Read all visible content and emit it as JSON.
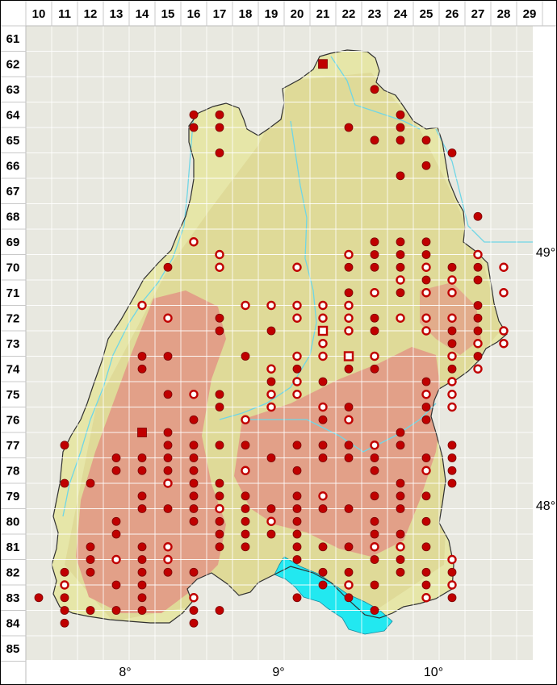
{
  "grid": {
    "columns": [
      "10",
      "11",
      "12",
      "13",
      "14",
      "15",
      "16",
      "17",
      "18",
      "19",
      "20",
      "21",
      "22",
      "23",
      "24",
      "25",
      "26",
      "27",
      "28",
      "29"
    ],
    "rows": [
      "61",
      "62",
      "63",
      "64",
      "65",
      "66",
      "67",
      "68",
      "69",
      "70",
      "71",
      "72",
      "73",
      "74",
      "75",
      "76",
      "77",
      "78",
      "79",
      "80",
      "81",
      "82",
      "83",
      "84",
      "85"
    ]
  },
  "longitude_labels": [
    "8°",
    "9°",
    "10°"
  ],
  "latitude_labels": [
    "49°",
    "48°"
  ],
  "colors": {
    "lowland": "#e6e6a8",
    "midland": "#d9d08a",
    "highland": "#e2a088",
    "outside": "#e8e8e0",
    "lake": "#22e8f0",
    "river": "#6fd6e6",
    "marker": "#c00000",
    "border": "#303030"
  },
  "legend_symbols": [
    "filled-dot",
    "open-dot",
    "filled-square",
    "open-square"
  ],
  "records": [
    {
      "c": 21,
      "r": 62,
      "t": "fs"
    },
    {
      "c": 23,
      "r": 63,
      "t": "f"
    },
    {
      "c": 16,
      "r": 64,
      "t": "f"
    },
    {
      "c": 17,
      "r": 64,
      "t": "f"
    },
    {
      "c": 24,
      "r": 64,
      "t": "f"
    },
    {
      "c": 16,
      "r": 64.5,
      "t": "f"
    },
    {
      "c": 17,
      "r": 64.5,
      "t": "f"
    },
    {
      "c": 22,
      "r": 64.5,
      "t": "f"
    },
    {
      "c": 24,
      "r": 64.5,
      "t": "f"
    },
    {
      "c": 23,
      "r": 65,
      "t": "f"
    },
    {
      "c": 24,
      "r": 65,
      "t": "f"
    },
    {
      "c": 25,
      "r": 65,
      "t": "f"
    },
    {
      "c": 17,
      "r": 65.5,
      "t": "f"
    },
    {
      "c": 26,
      "r": 65.5,
      "t": "f"
    },
    {
      "c": 25,
      "r": 66,
      "t": "f"
    },
    {
      "c": 24,
      "r": 66.4,
      "t": "f"
    },
    {
      "c": 27,
      "r": 68,
      "t": "f"
    },
    {
      "c": 16,
      "r": 69,
      "t": "o"
    },
    {
      "c": 23,
      "r": 69,
      "t": "f"
    },
    {
      "c": 24,
      "r": 69,
      "t": "f"
    },
    {
      "c": 25,
      "r": 69,
      "t": "f"
    },
    {
      "c": 17,
      "r": 69.5,
      "t": "o"
    },
    {
      "c": 22,
      "r": 69.5,
      "t": "o"
    },
    {
      "c": 23,
      "r": 69.5,
      "t": "f"
    },
    {
      "c": 24,
      "r": 69.5,
      "t": "f"
    },
    {
      "c": 25,
      "r": 69.5,
      "t": "f"
    },
    {
      "c": 27,
      "r": 69.5,
      "t": "o"
    },
    {
      "c": 15,
      "r": 70,
      "t": "f"
    },
    {
      "c": 17,
      "r": 70,
      "t": "o"
    },
    {
      "c": 20,
      "r": 70,
      "t": "o"
    },
    {
      "c": 22,
      "r": 70,
      "t": "f"
    },
    {
      "c": 23,
      "r": 70,
      "t": "f"
    },
    {
      "c": 24,
      "r": 70,
      "t": "f"
    },
    {
      "c": 25,
      "r": 70,
      "t": "o"
    },
    {
      "c": 26,
      "r": 70,
      "t": "f"
    },
    {
      "c": 27,
      "r": 70,
      "t": "f"
    },
    {
      "c": 28,
      "r": 70,
      "t": "o"
    },
    {
      "c": 24,
      "r": 70.5,
      "t": "o"
    },
    {
      "c": 25,
      "r": 70.5,
      "t": "f"
    },
    {
      "c": 26,
      "r": 70.5,
      "t": "o"
    },
    {
      "c": 27,
      "r": 70.5,
      "t": "f"
    },
    {
      "c": 22,
      "r": 71,
      "t": "f"
    },
    {
      "c": 23,
      "r": 71,
      "t": "o"
    },
    {
      "c": 24,
      "r": 71,
      "t": "f"
    },
    {
      "c": 25,
      "r": 71,
      "t": "o"
    },
    {
      "c": 26,
      "r": 71,
      "t": "o"
    },
    {
      "c": 28,
      "r": 71,
      "t": "o"
    },
    {
      "c": 14,
      "r": 71.5,
      "t": "o"
    },
    {
      "c": 18,
      "r": 71.5,
      "t": "o"
    },
    {
      "c": 19,
      "r": 71.5,
      "t": "o"
    },
    {
      "c": 20,
      "r": 71.5,
      "t": "o"
    },
    {
      "c": 21,
      "r": 71.5,
      "t": "o"
    },
    {
      "c": 22,
      "r": 71.5,
      "t": "o"
    },
    {
      "c": 27,
      "r": 71.5,
      "t": "f"
    },
    {
      "c": 15,
      "r": 72,
      "t": "o"
    },
    {
      "c": 17,
      "r": 72,
      "t": "f"
    },
    {
      "c": 20,
      "r": 72,
      "t": "o"
    },
    {
      "c": 21,
      "r": 72,
      "t": "o"
    },
    {
      "c": 22,
      "r": 72,
      "t": "o"
    },
    {
      "c": 23,
      "r": 72,
      "t": "f"
    },
    {
      "c": 24,
      "r": 72,
      "t": "o"
    },
    {
      "c": 25,
      "r": 72,
      "t": "o"
    },
    {
      "c": 26,
      "r": 72,
      "t": "o"
    },
    {
      "c": 27,
      "r": 72,
      "t": "f"
    },
    {
      "c": 17,
      "r": 72.5,
      "t": "f"
    },
    {
      "c": 19,
      "r": 72.5,
      "t": "f"
    },
    {
      "c": 21,
      "r": 72.5,
      "t": "os"
    },
    {
      "c": 22,
      "r": 72.5,
      "t": "o"
    },
    {
      "c": 23,
      "r": 72.5,
      "t": "f"
    },
    {
      "c": 25,
      "r": 72.5,
      "t": "o"
    },
    {
      "c": 26,
      "r": 72.5,
      "t": "f"
    },
    {
      "c": 27,
      "r": 72.5,
      "t": "f"
    },
    {
      "c": 28,
      "r": 72.5,
      "t": "o"
    },
    {
      "c": 21,
      "r": 73,
      "t": "o"
    },
    {
      "c": 26,
      "r": 73,
      "t": "f"
    },
    {
      "c": 27,
      "r": 73,
      "t": "o"
    },
    {
      "c": 28,
      "r": 73,
      "t": "o"
    },
    {
      "c": 14,
      "r": 73.5,
      "t": "f"
    },
    {
      "c": 15,
      "r": 73.5,
      "t": "f"
    },
    {
      "c": 18,
      "r": 73.5,
      "t": "f"
    },
    {
      "c": 20,
      "r": 73.5,
      "t": "o"
    },
    {
      "c": 21,
      "r": 73.5,
      "t": "o"
    },
    {
      "c": 22,
      "r": 73.5,
      "t": "os"
    },
    {
      "c": 23,
      "r": 73.5,
      "t": "o"
    },
    {
      "c": 26,
      "r": 73.5,
      "t": "o"
    },
    {
      "c": 27,
      "r": 73.5,
      "t": "f"
    },
    {
      "c": 14,
      "r": 74,
      "t": "f"
    },
    {
      "c": 19,
      "r": 74,
      "t": "o"
    },
    {
      "c": 20,
      "r": 74,
      "t": "f"
    },
    {
      "c": 22,
      "r": 74,
      "t": "f"
    },
    {
      "c": 23,
      "r": 74,
      "t": "f"
    },
    {
      "c": 26,
      "r": 74,
      "t": "f"
    },
    {
      "c": 27,
      "r": 74,
      "t": "o"
    },
    {
      "c": 19,
      "r": 74.5,
      "t": "f"
    },
    {
      "c": 20,
      "r": 74.5,
      "t": "o"
    },
    {
      "c": 21,
      "r": 74.5,
      "t": "f"
    },
    {
      "c": 25,
      "r": 74.5,
      "t": "f"
    },
    {
      "c": 26,
      "r": 74.5,
      "t": "o"
    },
    {
      "c": 15,
      "r": 75,
      "t": "f"
    },
    {
      "c": 16,
      "r": 75,
      "t": "o"
    },
    {
      "c": 17,
      "r": 75,
      "t": "f"
    },
    {
      "c": 19,
      "r": 75,
      "t": "o"
    },
    {
      "c": 20,
      "r": 75,
      "t": "o"
    },
    {
      "c": 25,
      "r": 75,
      "t": "o"
    },
    {
      "c": 26,
      "r": 75,
      "t": "o"
    },
    {
      "c": 17,
      "r": 75.5,
      "t": "f"
    },
    {
      "c": 19,
      "r": 75.5,
      "t": "o"
    },
    {
      "c": 21,
      "r": 75.5,
      "t": "o"
    },
    {
      "c": 22,
      "r": 75.5,
      "t": "f"
    },
    {
      "c": 25,
      "r": 75.5,
      "t": "f"
    },
    {
      "c": 26,
      "r": 75.5,
      "t": "o"
    },
    {
      "c": 16,
      "r": 76,
      "t": "f"
    },
    {
      "c": 18,
      "r": 76,
      "t": "o"
    },
    {
      "c": 21,
      "r": 76,
      "t": "f"
    },
    {
      "c": 22,
      "r": 76,
      "t": "o"
    },
    {
      "c": 25,
      "r": 76,
      "t": "f"
    },
    {
      "c": 14,
      "r": 76.5,
      "t": "fs"
    },
    {
      "c": 15,
      "r": 76.5,
      "t": "f"
    },
    {
      "c": 24,
      "r": 76.5,
      "t": "f"
    },
    {
      "c": 11,
      "r": 77,
      "t": "f"
    },
    {
      "c": 15,
      "r": 77,
      "t": "f"
    },
    {
      "c": 16,
      "r": 77,
      "t": "f"
    },
    {
      "c": 17,
      "r": 77,
      "t": "f"
    },
    {
      "c": 18,
      "r": 77,
      "t": "f"
    },
    {
      "c": 20,
      "r": 77,
      "t": "f"
    },
    {
      "c": 21,
      "r": 77,
      "t": "f"
    },
    {
      "c": 22,
      "r": 77,
      "t": "f"
    },
    {
      "c": 23,
      "r": 77,
      "t": "o"
    },
    {
      "c": 24,
      "r": 77,
      "t": "f"
    },
    {
      "c": 26,
      "r": 77,
      "t": "f"
    },
    {
      "c": 13,
      "r": 77.5,
      "t": "f"
    },
    {
      "c": 14,
      "r": 77.5,
      "t": "f"
    },
    {
      "c": 15,
      "r": 77.5,
      "t": "f"
    },
    {
      "c": 16,
      "r": 77.5,
      "t": "f"
    },
    {
      "c": 19,
      "r": 77.5,
      "t": "f"
    },
    {
      "c": 21,
      "r": 77.5,
      "t": "f"
    },
    {
      "c": 22,
      "r": 77.5,
      "t": "f"
    },
    {
      "c": 23,
      "r": 77.5,
      "t": "f"
    },
    {
      "c": 25,
      "r": 77.5,
      "t": "f"
    },
    {
      "c": 26,
      "r": 77.5,
      "t": "f"
    },
    {
      "c": 13,
      "r": 78,
      "t": "f"
    },
    {
      "c": 14,
      "r": 78,
      "t": "f"
    },
    {
      "c": 15,
      "r": 78,
      "t": "f"
    },
    {
      "c": 16,
      "r": 78,
      "t": "f"
    },
    {
      "c": 18,
      "r": 78,
      "t": "o"
    },
    {
      "c": 20,
      "r": 78,
      "t": "f"
    },
    {
      "c": 23,
      "r": 78,
      "t": "f"
    },
    {
      "c": 25,
      "r": 78,
      "t": "o"
    },
    {
      "c": 26,
      "r": 78,
      "t": "f"
    },
    {
      "c": 11,
      "r": 78.5,
      "t": "f"
    },
    {
      "c": 12,
      "r": 78.5,
      "t": "f"
    },
    {
      "c": 15,
      "r": 78.5,
      "t": "o"
    },
    {
      "c": 16,
      "r": 78.5,
      "t": "f"
    },
    {
      "c": 17,
      "r": 78.5,
      "t": "f"
    },
    {
      "c": 24,
      "r": 78.5,
      "t": "f"
    },
    {
      "c": 26,
      "r": 78.5,
      "t": "f"
    },
    {
      "c": 14,
      "r": 79,
      "t": "f"
    },
    {
      "c": 16,
      "r": 79,
      "t": "f"
    },
    {
      "c": 17,
      "r": 79,
      "t": "f"
    },
    {
      "c": 18,
      "r": 79,
      "t": "f"
    },
    {
      "c": 20,
      "r": 79,
      "t": "f"
    },
    {
      "c": 21,
      "r": 79,
      "t": "o"
    },
    {
      "c": 23,
      "r": 79,
      "t": "f"
    },
    {
      "c": 24,
      "r": 79,
      "t": "f"
    },
    {
      "c": 25,
      "r": 79,
      "t": "f"
    },
    {
      "c": 14,
      "r": 79.5,
      "t": "f"
    },
    {
      "c": 15,
      "r": 79.5,
      "t": "f"
    },
    {
      "c": 16,
      "r": 79.5,
      "t": "f"
    },
    {
      "c": 17,
      "r": 79.5,
      "t": "o"
    },
    {
      "c": 18,
      "r": 79.5,
      "t": "f"
    },
    {
      "c": 19,
      "r": 79.5,
      "t": "f"
    },
    {
      "c": 20,
      "r": 79.5,
      "t": "f"
    },
    {
      "c": 21,
      "r": 79.5,
      "t": "f"
    },
    {
      "c": 22,
      "r": 79.5,
      "t": "f"
    },
    {
      "c": 24,
      "r": 79.5,
      "t": "f"
    },
    {
      "c": 13,
      "r": 80,
      "t": "f"
    },
    {
      "c": 16,
      "r": 80,
      "t": "f"
    },
    {
      "c": 17,
      "r": 80,
      "t": "f"
    },
    {
      "c": 18,
      "r": 80,
      "t": "f"
    },
    {
      "c": 19,
      "r": 80,
      "t": "o"
    },
    {
      "c": 20,
      "r": 80,
      "t": "f"
    },
    {
      "c": 23,
      "r": 80,
      "t": "f"
    },
    {
      "c": 25,
      "r": 80,
      "t": "f"
    },
    {
      "c": 13,
      "r": 80.5,
      "t": "f"
    },
    {
      "c": 17,
      "r": 80.5,
      "t": "f"
    },
    {
      "c": 18,
      "r": 80.5,
      "t": "f"
    },
    {
      "c": 19,
      "r": 80.5,
      "t": "f"
    },
    {
      "c": 20,
      "r": 80.5,
      "t": "f"
    },
    {
      "c": 23,
      "r": 80.5,
      "t": "f"
    },
    {
      "c": 24,
      "r": 80.5,
      "t": "f"
    },
    {
      "c": 12,
      "r": 81,
      "t": "f"
    },
    {
      "c": 14,
      "r": 81,
      "t": "f"
    },
    {
      "c": 15,
      "r": 81,
      "t": "o"
    },
    {
      "c": 17,
      "r": 81,
      "t": "f"
    },
    {
      "c": 18,
      "r": 81,
      "t": "f"
    },
    {
      "c": 20,
      "r": 81,
      "t": "f"
    },
    {
      "c": 21,
      "r": 81,
      "t": "f"
    },
    {
      "c": 22,
      "r": 81,
      "t": "f"
    },
    {
      "c": 23,
      "r": 81,
      "t": "o"
    },
    {
      "c": 24,
      "r": 81,
      "t": "o"
    },
    {
      "c": 25,
      "r": 81,
      "t": "f"
    },
    {
      "c": 12,
      "r": 81.5,
      "t": "f"
    },
    {
      "c": 13,
      "r": 81.5,
      "t": "o"
    },
    {
      "c": 14,
      "r": 81.5,
      "t": "f"
    },
    {
      "c": 15,
      "r": 81.5,
      "t": "o"
    },
    {
      "c": 20,
      "r": 81.5,
      "t": "f"
    },
    {
      "c": 23,
      "r": 81.5,
      "t": "f"
    },
    {
      "c": 24,
      "r": 81.5,
      "t": "f"
    },
    {
      "c": 26,
      "r": 81.5,
      "t": "o"
    },
    {
      "c": 11,
      "r": 82,
      "t": "f"
    },
    {
      "c": 12,
      "r": 82,
      "t": "f"
    },
    {
      "c": 14,
      "r": 82,
      "t": "f"
    },
    {
      "c": 15,
      "r": 82,
      "t": "f"
    },
    {
      "c": 16,
      "r": 82,
      "t": "f"
    },
    {
      "c": 21,
      "r": 82,
      "t": "f"
    },
    {
      "c": 22,
      "r": 82,
      "t": "f"
    },
    {
      "c": 24,
      "r": 82,
      "t": "f"
    },
    {
      "c": 25,
      "r": 82,
      "t": "f"
    },
    {
      "c": 26,
      "r": 82,
      "t": "f"
    },
    {
      "c": 11,
      "r": 82.5,
      "t": "o"
    },
    {
      "c": 13,
      "r": 82.5,
      "t": "f"
    },
    {
      "c": 14,
      "r": 82.5,
      "t": "f"
    },
    {
      "c": 21,
      "r": 82.5,
      "t": "f"
    },
    {
      "c": 22,
      "r": 82.5,
      "t": "o"
    },
    {
      "c": 23,
      "r": 82.5,
      "t": "f"
    },
    {
      "c": 25,
      "r": 82.5,
      "t": "f"
    },
    {
      "c": 26,
      "r": 82.5,
      "t": "o"
    },
    {
      "c": 10,
      "r": 83,
      "t": "f"
    },
    {
      "c": 11,
      "r": 83,
      "t": "f"
    },
    {
      "c": 14,
      "r": 83,
      "t": "f"
    },
    {
      "c": 16,
      "r": 83,
      "t": "o"
    },
    {
      "c": 20,
      "r": 83,
      "t": "f"
    },
    {
      "c": 22,
      "r": 83,
      "t": "f"
    },
    {
      "c": 25,
      "r": 83,
      "t": "o"
    },
    {
      "c": 26,
      "r": 83,
      "t": "f"
    },
    {
      "c": 11,
      "r": 83.5,
      "t": "f"
    },
    {
      "c": 12,
      "r": 83.5,
      "t": "f"
    },
    {
      "c": 13,
      "r": 83.5,
      "t": "f"
    },
    {
      "c": 14,
      "r": 83.5,
      "t": "f"
    },
    {
      "c": 16,
      "r": 83.5,
      "t": "f"
    },
    {
      "c": 17,
      "r": 83.5,
      "t": "f"
    },
    {
      "c": 23,
      "r": 83.5,
      "t": "f"
    },
    {
      "c": 11,
      "r": 84,
      "t": "f"
    },
    {
      "c": 16,
      "r": 84,
      "t": "f"
    }
  ]
}
